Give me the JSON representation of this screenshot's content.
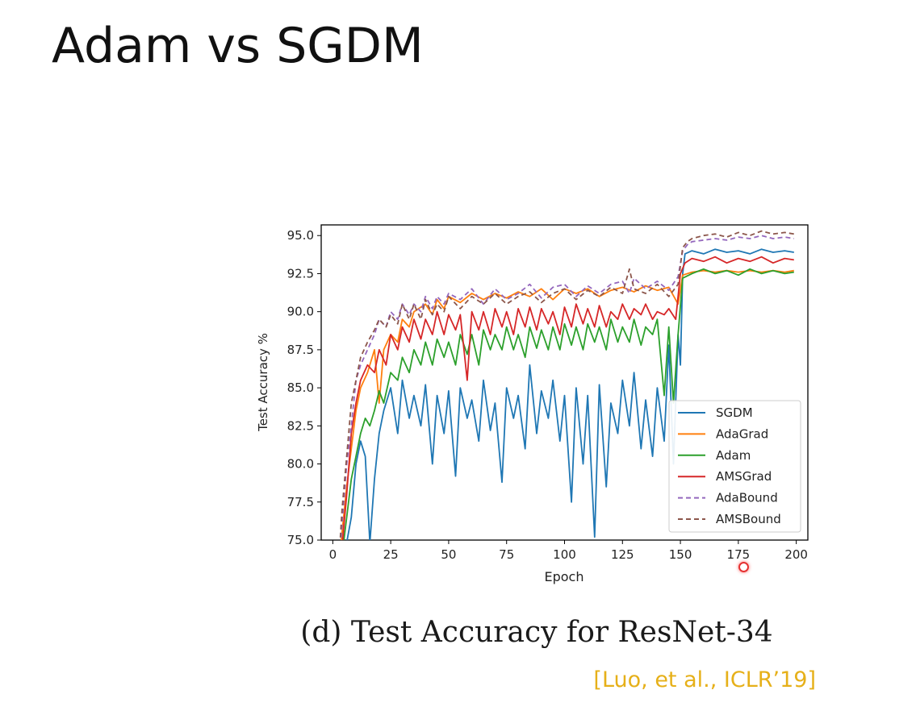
{
  "slide": {
    "title": "Adam vs SGDM",
    "caption": "(d) Test Accuracy for ResNet-34",
    "citation": "[Luo, et al., ICLR’19]"
  },
  "chart_data": {
    "type": "line",
    "xlabel": "Epoch",
    "ylabel": "Test Accuracy %",
    "xlim": [
      -5,
      205
    ],
    "ylim": [
      75,
      95.7
    ],
    "xticks": [
      0,
      25,
      50,
      75,
      100,
      125,
      150,
      175,
      200
    ],
    "yticks": [
      75.0,
      77.5,
      80.0,
      82.5,
      85.0,
      87.5,
      90.0,
      92.5,
      95.0
    ],
    "legend_position": "lower-right",
    "grid": false,
    "series": [
      {
        "name": "SGDM",
        "color": "#1f77b4",
        "dashed": false,
        "x": [
          2,
          5,
          8,
          10,
          12,
          14,
          16,
          18,
          20,
          22,
          25,
          28,
          30,
          33,
          35,
          38,
          40,
          43,
          45,
          48,
          50,
          53,
          55,
          58,
          60,
          63,
          65,
          68,
          70,
          73,
          75,
          78,
          80,
          83,
          85,
          88,
          90,
          93,
          95,
          98,
          100,
          103,
          105,
          108,
          110,
          113,
          115,
          118,
          120,
          123,
          125,
          128,
          130,
          133,
          135,
          138,
          140,
          143,
          145,
          147,
          149,
          150,
          151,
          152,
          155,
          160,
          165,
          170,
          175,
          180,
          185,
          190,
          195,
          199
        ],
        "y": [
          72.0,
          74.0,
          76.5,
          80.0,
          81.5,
          80.5,
          74.8,
          79.0,
          82.0,
          83.5,
          85.0,
          82.0,
          85.5,
          83.0,
          84.5,
          82.5,
          85.2,
          80.0,
          84.5,
          82.0,
          84.8,
          79.2,
          85.0,
          83.0,
          84.2,
          81.5,
          85.5,
          82.2,
          84.0,
          78.8,
          85.0,
          83.0,
          84.5,
          81.0,
          86.5,
          82.0,
          84.8,
          83.0,
          85.5,
          81.5,
          84.5,
          77.5,
          85.0,
          80.0,
          84.5,
          75.2,
          85.2,
          78.5,
          84.0,
          82.0,
          85.5,
          82.5,
          86.0,
          81.0,
          84.2,
          80.5,
          85.0,
          81.5,
          87.8,
          80.0,
          88.5,
          86.5,
          92.5,
          93.8,
          94.0,
          93.8,
          94.1,
          93.9,
          94.0,
          93.8,
          94.1,
          93.9,
          94.0,
          93.9
        ]
      },
      {
        "name": "AdaGrad",
        "color": "#ff7f0e",
        "dashed": false,
        "x": [
          2,
          4,
          6,
          8,
          10,
          12,
          15,
          18,
          20,
          22,
          25,
          28,
          30,
          33,
          35,
          38,
          40,
          43,
          45,
          48,
          50,
          55,
          60,
          65,
          70,
          75,
          80,
          85,
          90,
          95,
          100,
          105,
          110,
          115,
          120,
          125,
          130,
          135,
          140,
          145,
          149,
          151,
          155,
          160,
          165,
          170,
          175,
          180,
          185,
          190,
          195,
          199
        ],
        "y": [
          72.0,
          75.5,
          78.5,
          81.0,
          83.5,
          85.0,
          86.0,
          87.5,
          84.0,
          87.5,
          88.5,
          88.0,
          89.5,
          89.0,
          90.0,
          90.3,
          90.5,
          89.8,
          90.8,
          90.2,
          91.0,
          90.6,
          91.2,
          90.8,
          91.2,
          90.9,
          91.3,
          91.0,
          91.5,
          90.8,
          91.5,
          91.2,
          91.5,
          91.0,
          91.4,
          91.6,
          91.3,
          91.7,
          91.4,
          91.6,
          90.5,
          92.4,
          92.6,
          92.7,
          92.6,
          92.7,
          92.6,
          92.7,
          92.6,
          92.7,
          92.6,
          92.7
        ]
      },
      {
        "name": "Adam",
        "color": "#2ca02c",
        "dashed": false,
        "x": [
          2,
          4,
          6,
          8,
          10,
          12,
          14,
          16,
          18,
          20,
          22,
          25,
          28,
          30,
          33,
          35,
          38,
          40,
          43,
          45,
          48,
          50,
          53,
          55,
          58,
          60,
          63,
          65,
          68,
          70,
          73,
          75,
          78,
          80,
          83,
          85,
          88,
          90,
          93,
          95,
          98,
          100,
          103,
          105,
          108,
          110,
          113,
          115,
          118,
          120,
          123,
          125,
          128,
          130,
          133,
          135,
          138,
          140,
          143,
          145,
          147,
          149,
          151,
          155,
          160,
          165,
          170,
          175,
          180,
          185,
          190,
          195,
          199
        ],
        "y": [
          72.0,
          74.0,
          76.5,
          79.0,
          80.5,
          82.0,
          83.0,
          82.5,
          83.5,
          84.8,
          84.0,
          86.0,
          85.5,
          87.0,
          86.0,
          87.5,
          86.5,
          88.0,
          86.5,
          88.2,
          87.0,
          88.0,
          86.5,
          88.5,
          87.2,
          88.5,
          86.5,
          88.8,
          87.5,
          88.5,
          87.5,
          89.0,
          87.5,
          88.5,
          87.0,
          89.0,
          87.6,
          88.8,
          87.5,
          89.0,
          87.5,
          89.2,
          87.8,
          89.0,
          87.5,
          89.2,
          88.0,
          89.0,
          87.5,
          89.5,
          88.0,
          89.0,
          88.0,
          89.5,
          87.8,
          89.0,
          88.5,
          89.5,
          84.5,
          89.0,
          84.0,
          88.5,
          92.2,
          92.5,
          92.8,
          92.5,
          92.7,
          92.4,
          92.8,
          92.5,
          92.7,
          92.5,
          92.6
        ]
      },
      {
        "name": "AMSGrad",
        "color": "#d62728",
        "dashed": false,
        "x": [
          2,
          4,
          6,
          8,
          10,
          12,
          15,
          18,
          20,
          23,
          25,
          28,
          30,
          33,
          35,
          38,
          40,
          43,
          45,
          48,
          50,
          53,
          55,
          58,
          60,
          63,
          65,
          68,
          70,
          73,
          75,
          78,
          80,
          83,
          85,
          88,
          90,
          93,
          95,
          98,
          100,
          103,
          105,
          108,
          110,
          113,
          115,
          118,
          120,
          123,
          125,
          128,
          130,
          133,
          135,
          138,
          140,
          143,
          145,
          148,
          150,
          152,
          155,
          160,
          165,
          170,
          175,
          180,
          185,
          190,
          195,
          199
        ],
        "y": [
          72.0,
          74.5,
          78.0,
          82.0,
          84.0,
          85.5,
          86.5,
          86.0,
          87.5,
          86.5,
          88.5,
          87.5,
          89.0,
          88.0,
          89.5,
          88.2,
          89.5,
          88.5,
          90.0,
          88.5,
          89.8,
          88.8,
          89.8,
          85.5,
          90.0,
          88.8,
          90.0,
          88.5,
          90.2,
          89.0,
          90.0,
          88.5,
          90.2,
          89.0,
          90.3,
          88.8,
          90.2,
          89.2,
          90.0,
          88.5,
          90.3,
          89.0,
          90.5,
          89.2,
          90.2,
          89.0,
          90.4,
          89.0,
          90.0,
          89.5,
          90.5,
          89.5,
          90.2,
          89.8,
          90.5,
          89.5,
          90.0,
          89.8,
          90.2,
          89.5,
          92.5,
          93.2,
          93.5,
          93.3,
          93.6,
          93.2,
          93.5,
          93.3,
          93.6,
          93.2,
          93.5,
          93.4
        ]
      },
      {
        "name": "AdaBound",
        "color": "#9467bd",
        "dashed": true,
        "x": [
          2,
          4,
          6,
          8,
          10,
          12,
          15,
          18,
          20,
          23,
          25,
          28,
          30,
          33,
          35,
          38,
          40,
          43,
          45,
          48,
          50,
          55,
          60,
          65,
          70,
          75,
          80,
          85,
          90,
          95,
          100,
          105,
          110,
          115,
          120,
          125,
          128,
          130,
          135,
          140,
          145,
          149,
          151,
          153,
          155,
          160,
          165,
          170,
          175,
          180,
          185,
          190,
          195,
          199
        ],
        "y": [
          72.0,
          76.0,
          80.0,
          82.5,
          85.5,
          86.5,
          87.5,
          88.5,
          89.5,
          89.0,
          90.0,
          89.5,
          90.5,
          89.8,
          90.5,
          90.0,
          91.0,
          90.2,
          91.0,
          90.5,
          91.2,
          90.8,
          91.5,
          90.5,
          91.5,
          90.8,
          91.2,
          91.8,
          90.9,
          91.6,
          91.8,
          91.0,
          91.7,
          91.2,
          91.8,
          92.0,
          91.2,
          92.2,
          91.5,
          92.0,
          91.4,
          92.3,
          94.0,
          94.4,
          94.6,
          94.7,
          94.8,
          94.7,
          94.9,
          94.8,
          95.0,
          94.8,
          94.9,
          94.8
        ]
      },
      {
        "name": "AMSBound",
        "color": "#8c564b",
        "dashed": true,
        "x": [
          2,
          4,
          6,
          8,
          10,
          12,
          15,
          18,
          20,
          23,
          25,
          28,
          30,
          33,
          35,
          38,
          40,
          43,
          45,
          48,
          50,
          55,
          60,
          65,
          70,
          75,
          80,
          85,
          90,
          95,
          100,
          105,
          110,
          115,
          120,
          125,
          128,
          130,
          135,
          140,
          145,
          149,
          151,
          153,
          155,
          160,
          165,
          170,
          175,
          180,
          185,
          190,
          195,
          199
        ],
        "y": [
          72.0,
          77.0,
          80.5,
          84.0,
          85.5,
          87.0,
          88.0,
          88.8,
          89.5,
          89.0,
          89.8,
          89.2,
          90.5,
          89.5,
          90.5,
          89.5,
          90.8,
          89.8,
          90.5,
          90.0,
          91.0,
          90.2,
          91.0,
          90.5,
          91.2,
          90.5,
          91.0,
          91.3,
          90.6,
          91.2,
          91.5,
          90.8,
          91.4,
          91.0,
          91.6,
          91.2,
          92.8,
          91.5,
          91.2,
          91.8,
          91.0,
          91.8,
          94.2,
          94.6,
          94.8,
          95.0,
          95.1,
          94.9,
          95.2,
          95.0,
          95.3,
          95.1,
          95.2,
          95.1
        ]
      }
    ]
  }
}
